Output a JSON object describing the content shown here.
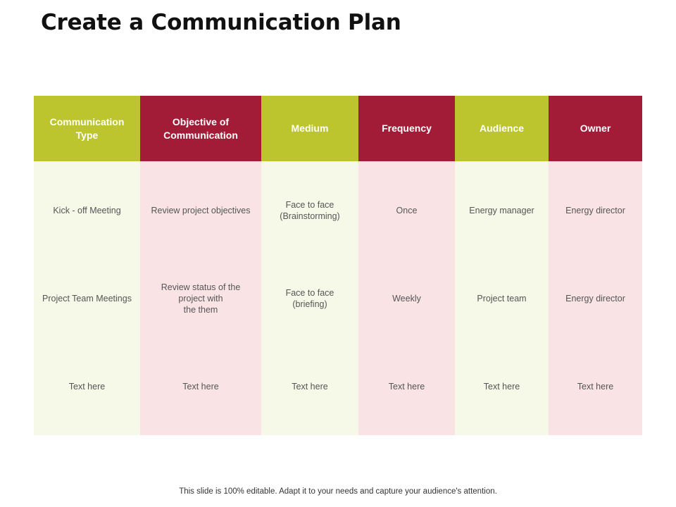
{
  "title": "Create a Communication Plan",
  "table": {
    "columns": [
      {
        "label": "Communication\nType",
        "tone": "green"
      },
      {
        "label": "Objective of\nCommunication",
        "tone": "red"
      },
      {
        "label": "Medium",
        "tone": "green"
      },
      {
        "label": "Frequency",
        "tone": "red"
      },
      {
        "label": "Audience",
        "tone": "green"
      },
      {
        "label": "Owner",
        "tone": "red"
      }
    ],
    "rows": [
      [
        "Kick - off Meeting",
        "Review project objectives",
        "Face to face\n(Brainstorming)",
        "Once",
        "Energy manager",
        "Energy director"
      ],
      [
        "Project Team Meetings",
        "Review status of the\nproject with\nthe them",
        "Face to face\n(briefing)",
        "Weekly",
        "Project team",
        "Energy director"
      ],
      [
        "Text here",
        "Text here",
        "Text here",
        "Text here",
        "Text here",
        "Text here"
      ]
    ]
  },
  "colors": {
    "header_green": "#bcc52e",
    "header_red": "#a31c37",
    "cell_green": "#f6f8e8",
    "cell_red": "#f9e3e5"
  },
  "footer": "This slide is 100% editable. Adapt it to your needs and capture your audience's attention."
}
